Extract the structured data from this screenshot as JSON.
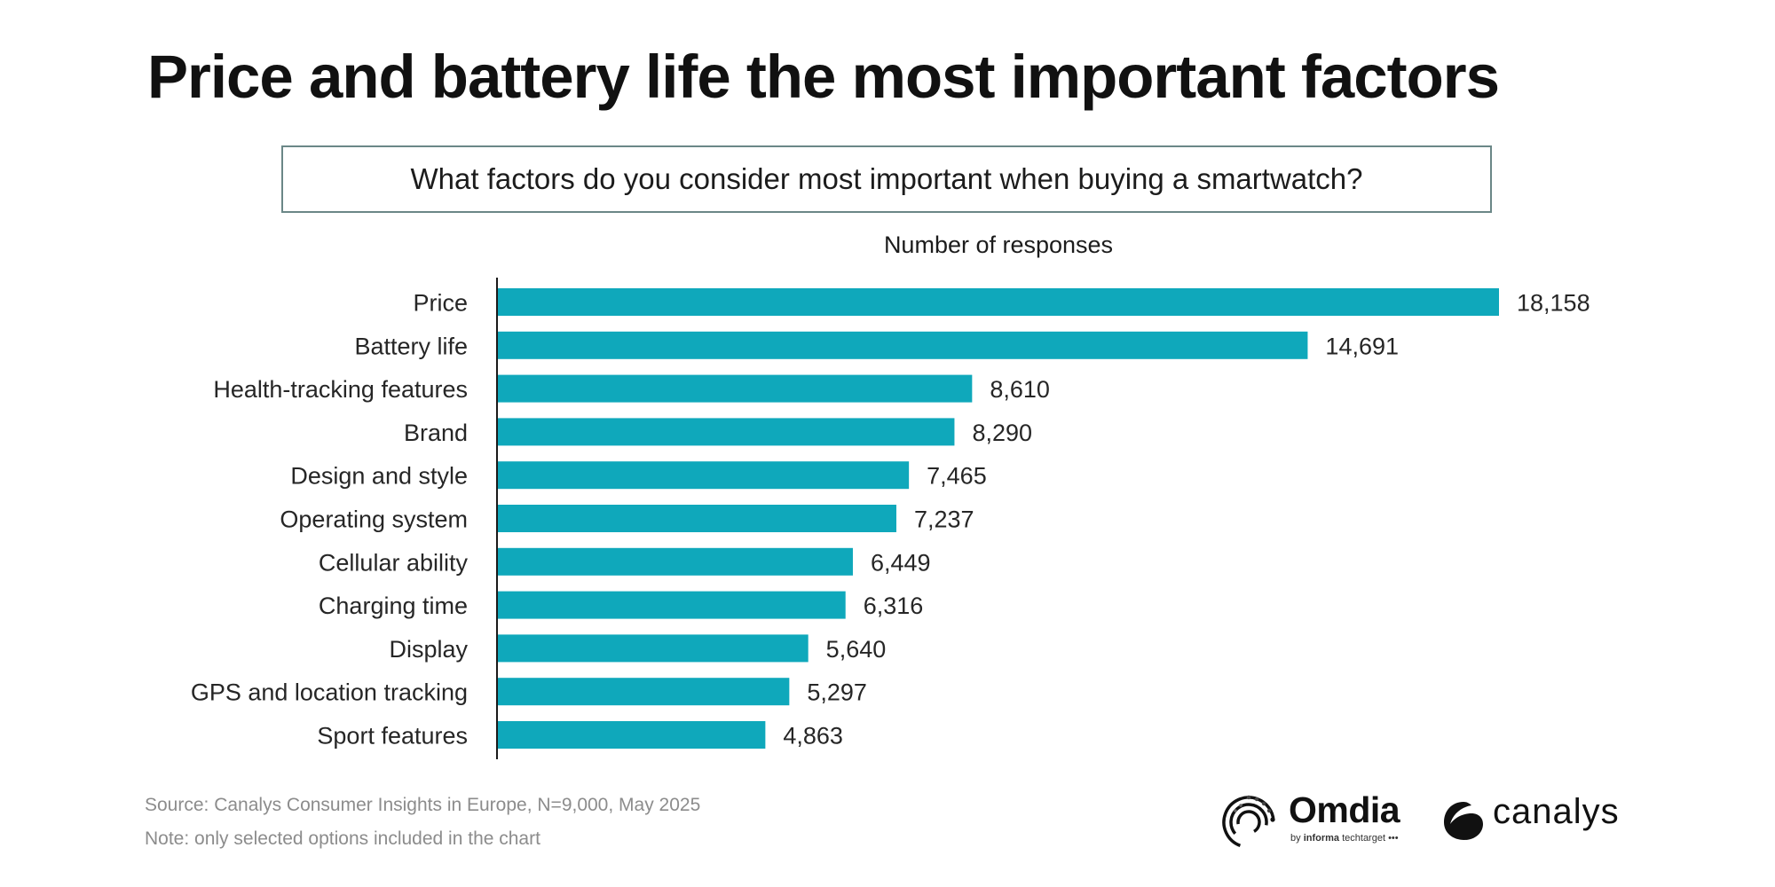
{
  "header": {
    "title": "Price and battery life the most important factors",
    "question": "What factors do you consider most important when buying a smartwatch?"
  },
  "chart_data": {
    "type": "bar",
    "orientation": "horizontal",
    "title": "Price and battery life the most important factors",
    "subtitle": "What factors do you consider most important when buying a smartwatch?",
    "xlabel": "Number of responses",
    "ylabel": "",
    "categories": [
      "Price",
      "Battery life",
      "Health-tracking features",
      "Brand",
      "Design and style",
      "Operating system",
      "Cellular ability",
      "Charging time",
      "Display",
      "GPS and location tracking",
      "Sport features"
    ],
    "values": [
      18158,
      14691,
      8610,
      8290,
      7465,
      7237,
      6449,
      6316,
      5640,
      5297,
      4863
    ],
    "value_labels": [
      "18,158",
      "14,691",
      "8,610",
      "8,290",
      "7,465",
      "7,237",
      "6,449",
      "6,316",
      "5,640",
      "5,297",
      "4,863"
    ],
    "xlim": [
      0,
      18158
    ],
    "grid": false,
    "legend": "none",
    "bar_color": "#0fa8bb"
  },
  "footer": {
    "source": "Source: Canalys Consumer Insights in Europe, N=9,000, May 2025",
    "note": "Note: only selected options included in the chart"
  },
  "logos": {
    "omdia": {
      "name": "Omdia",
      "tagline_prefix": "by",
      "tagline_brand": "informa",
      "tagline_suffix": "techtarget •••",
      "icon": "omdia-logo-icon"
    },
    "canalys": {
      "name": "canalys",
      "icon": "canalys-logo-icon"
    }
  }
}
